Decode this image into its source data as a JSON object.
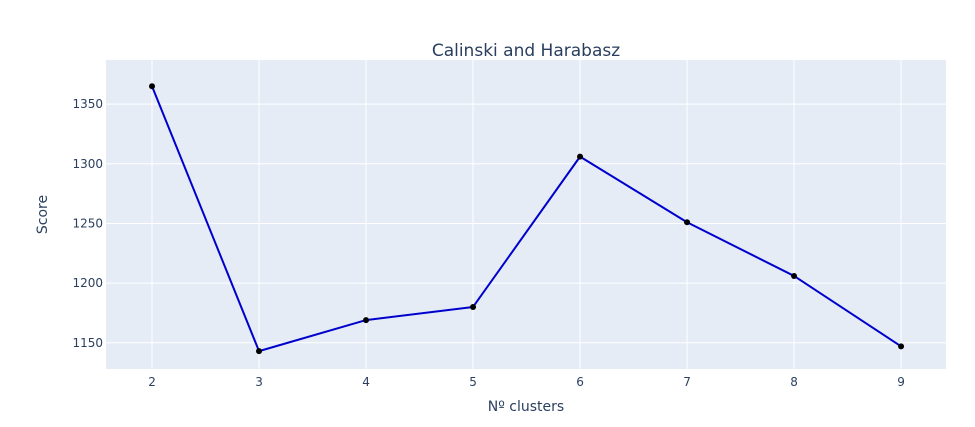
{
  "chart_data": {
    "type": "line",
    "title": "Calinski and Harabasz",
    "xlabel": "Nº clusters",
    "ylabel": "Score",
    "x": [
      2,
      3,
      4,
      5,
      6,
      7,
      8,
      9
    ],
    "x_tick_labels": [
      "2",
      "3",
      "4",
      "5",
      "6",
      "7",
      "8",
      "9"
    ],
    "y_ticks": [
      1150,
      1200,
      1250,
      1300,
      1350
    ],
    "y_tick_labels": [
      "1150",
      "1200",
      "1250",
      "1300",
      "1350"
    ],
    "xlim": [
      1.57,
      9.42
    ],
    "ylim": [
      1128,
      1387
    ],
    "series": [
      {
        "values": [
          1365,
          1143,
          1169,
          1180,
          1306,
          1251,
          1206,
          1147
        ],
        "line_color": "#0000cd",
        "marker_color": "#000000",
        "mode": "lines+markers"
      }
    ],
    "grid": true,
    "plot_background": "#e5ecf6",
    "grid_color": "#ffffff"
  }
}
